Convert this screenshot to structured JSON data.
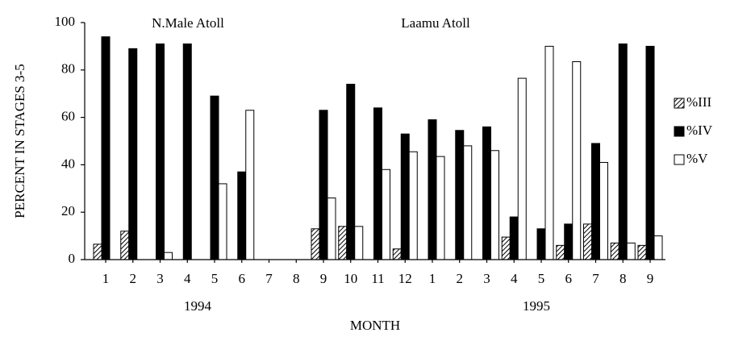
{
  "chart_data": {
    "type": "bar",
    "y_label": "PERCENT IN STAGES 3-5",
    "x_label": "MONTH",
    "annotations": [
      "N.Male Atoll",
      "Laamu Atoll"
    ],
    "year_labels": [
      "1994",
      "1995"
    ],
    "categories": [
      "1",
      "2",
      "3",
      "4",
      "5",
      "6",
      "7",
      "8",
      "9",
      "10",
      "11",
      "12",
      "1",
      "2",
      "3",
      "4",
      "5",
      "6",
      "7",
      "8",
      "9"
    ],
    "series": [
      {
        "name": "%III",
        "color": "#000000",
        "hatch": true,
        "values": [
          6.5,
          12,
          0,
          0,
          0,
          0,
          null,
          null,
          13,
          14,
          0,
          4.5,
          0,
          0,
          0,
          9.5,
          0,
          6,
          15,
          7,
          6
        ]
      },
      {
        "name": "%IV",
        "color": "#000000",
        "hatch": false,
        "values": [
          94,
          89,
          91,
          91,
          69,
          37,
          null,
          null,
          63,
          74,
          64,
          53,
          59,
          54.5,
          56,
          18,
          13,
          15,
          49,
          91,
          90
        ]
      },
      {
        "name": "%V",
        "color": "#ffffff",
        "hatch": false,
        "values": [
          0,
          0,
          3,
          0,
          32,
          63,
          null,
          null,
          26,
          14,
          38,
          45.5,
          43.5,
          48,
          46,
          76.5,
          90,
          83.5,
          41,
          7,
          10
        ]
      }
    ],
    "ylim": [
      0,
      100
    ],
    "yticks": [
      0,
      20,
      40,
      60,
      80,
      100
    ],
    "legend": "right"
  }
}
